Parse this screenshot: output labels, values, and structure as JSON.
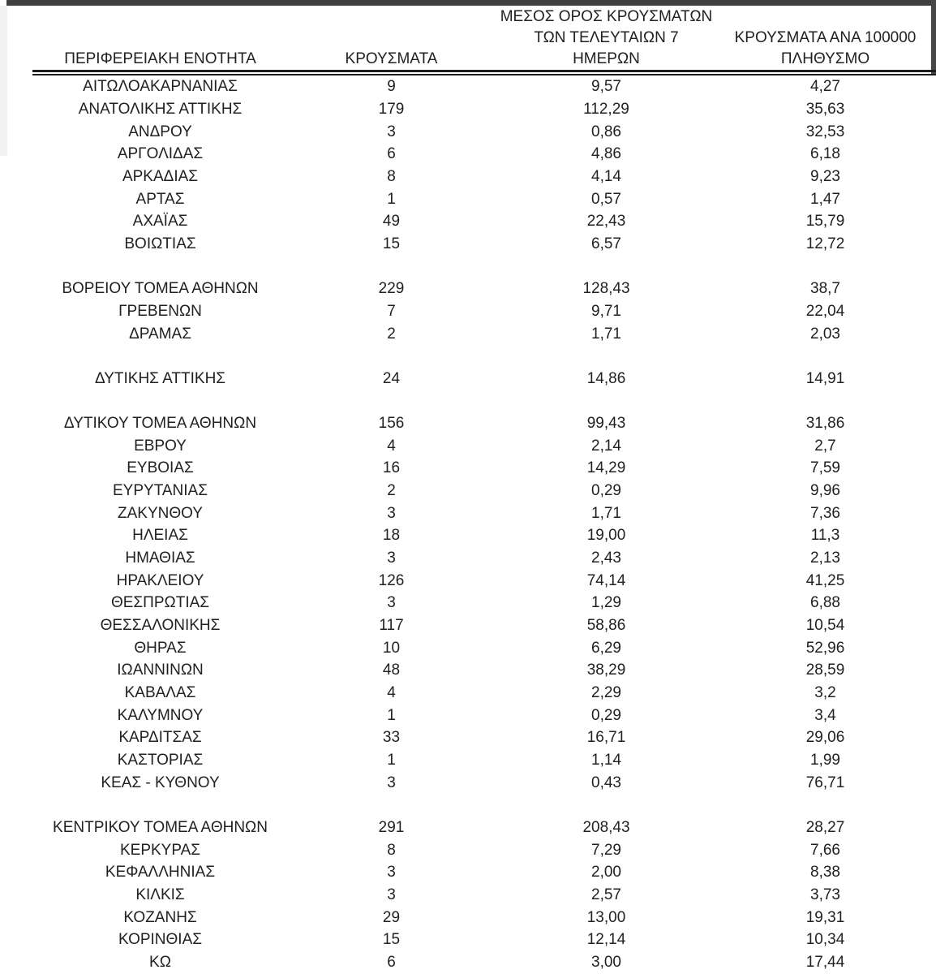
{
  "colors": {
    "text": "#212121",
    "rule": "#1c1c1c",
    "frame_top": "#3f3f3f",
    "frame_right": "#474747",
    "page_edge": "#f1f1f1"
  },
  "table": {
    "header": {
      "col1_lines": [
        "ΠΕΡΙΦΕΡΕΙΑΚΗ ΕΝΟΤΗΤΑ"
      ],
      "col2_lines": [
        "ΚΡΟΥΣΜΑΤΑ"
      ],
      "col3_lines": [
        "ΜΕΣΟΣ ΟΡΟΣ ΚΡΟΥΣΜΑΤΩΝ",
        "ΤΩΝ ΤΕΛΕΥΤΑΙΩΝ 7",
        "ΗΜΕΡΩΝ"
      ],
      "col4_lines": [
        "ΚΡΟΥΣΜΑΤΑ ΑΝΑ 100000",
        "ΠΛΗΘΥΣΜΟ"
      ]
    },
    "rows": [
      {
        "region": "ΑΙΤΩΛΟΑΚΑΡΝΑΝΙΑΣ",
        "cases": "9",
        "avg7": "9,57",
        "per100k": "4,27"
      },
      {
        "region": "ΑΝΑΤΟΛΙΚΗΣ ΑΤΤΙΚΗΣ",
        "cases": "179",
        "avg7": "112,29",
        "per100k": "35,63"
      },
      {
        "region": "ΑΝΔΡΟΥ",
        "cases": "3",
        "avg7": "0,86",
        "per100k": "32,53"
      },
      {
        "region": "ΑΡΓΟΛΙΔΑΣ",
        "cases": "6",
        "avg7": "4,86",
        "per100k": "6,18"
      },
      {
        "region": "ΑΡΚΑΔΙΑΣ",
        "cases": "8",
        "avg7": "4,14",
        "per100k": "9,23"
      },
      {
        "region": "ΑΡΤΑΣ",
        "cases": "1",
        "avg7": "0,57",
        "per100k": "1,47"
      },
      {
        "region": "ΑΧΑΪΑΣ",
        "cases": "49",
        "avg7": "22,43",
        "per100k": "15,79"
      },
      {
        "region": "ΒΟΙΩΤΙΑΣ",
        "cases": "15",
        "avg7": "6,57",
        "per100k": "12,72"
      },
      {
        "blank": true
      },
      {
        "region": "ΒΟΡΕΙΟΥ ΤΟΜΕΑ ΑΘΗΝΩΝ",
        "cases": "229",
        "avg7": "128,43",
        "per100k": "38,7"
      },
      {
        "region": "ΓΡΕΒΕΝΩΝ",
        "cases": "7",
        "avg7": "9,71",
        "per100k": "22,04"
      },
      {
        "region": "ΔΡΑΜΑΣ",
        "cases": "2",
        "avg7": "1,71",
        "per100k": "2,03"
      },
      {
        "blank": true
      },
      {
        "region": "ΔΥΤΙΚΗΣ ΑΤΤΙΚΗΣ",
        "cases": "24",
        "avg7": "14,86",
        "per100k": "14,91"
      },
      {
        "blank": true
      },
      {
        "region": "ΔΥΤΙΚΟΥ ΤΟΜΕΑ ΑΘΗΝΩΝ",
        "cases": "156",
        "avg7": "99,43",
        "per100k": "31,86"
      },
      {
        "region": "ΕΒΡΟΥ",
        "cases": "4",
        "avg7": "2,14",
        "per100k": "2,7"
      },
      {
        "region": "ΕΥΒΟΙΑΣ",
        "cases": "16",
        "avg7": "14,29",
        "per100k": "7,59"
      },
      {
        "region": "ΕΥΡΥΤΑΝΙΑΣ",
        "cases": "2",
        "avg7": "0,29",
        "per100k": "9,96"
      },
      {
        "region": "ΖΑΚΥΝΘΟΥ",
        "cases": "3",
        "avg7": "1,71",
        "per100k": "7,36"
      },
      {
        "region": "ΗΛΕΙΑΣ",
        "cases": "18",
        "avg7": "19,00",
        "per100k": "11,3"
      },
      {
        "region": "ΗΜΑΘΙΑΣ",
        "cases": "3",
        "avg7": "2,43",
        "per100k": "2,13"
      },
      {
        "region": "ΗΡΑΚΛΕΙΟΥ",
        "cases": "126",
        "avg7": "74,14",
        "per100k": "41,25"
      },
      {
        "region": "ΘΕΣΠΡΩΤΙΑΣ",
        "cases": "3",
        "avg7": "1,29",
        "per100k": "6,88"
      },
      {
        "region": "ΘΕΣΣΑΛΟΝΙΚΗΣ",
        "cases": "117",
        "avg7": "58,86",
        "per100k": "10,54"
      },
      {
        "region": "ΘΗΡΑΣ",
        "cases": "10",
        "avg7": "6,29",
        "per100k": "52,96"
      },
      {
        "region": "ΙΩΑΝΝΙΝΩΝ",
        "cases": "48",
        "avg7": "38,29",
        "per100k": "28,59"
      },
      {
        "region": "ΚΑΒΑΛΑΣ",
        "cases": "4",
        "avg7": "2,29",
        "per100k": "3,2"
      },
      {
        "region": "ΚΑΛΥΜΝΟΥ",
        "cases": "1",
        "avg7": "0,29",
        "per100k": "3,4"
      },
      {
        "region": "ΚΑΡΔΙΤΣΑΣ",
        "cases": "33",
        "avg7": "16,71",
        "per100k": "29,06"
      },
      {
        "region": "ΚΑΣΤΟΡΙΑΣ",
        "cases": "1",
        "avg7": "1,14",
        "per100k": "1,99"
      },
      {
        "region": "ΚΕΑΣ - ΚΥΘΝΟΥ",
        "cases": "3",
        "avg7": "0,43",
        "per100k": "76,71"
      },
      {
        "blank": true
      },
      {
        "region": "ΚΕΝΤΡΙΚΟΥ ΤΟΜΕΑ ΑΘΗΝΩΝ",
        "cases": "291",
        "avg7": "208,43",
        "per100k": "28,27"
      },
      {
        "region": "ΚΕΡΚΥΡΑΣ",
        "cases": "8",
        "avg7": "7,29",
        "per100k": "7,66"
      },
      {
        "region": "ΚΕΦΑΛΛΗΝΙΑΣ",
        "cases": "3",
        "avg7": "2,00",
        "per100k": "8,38"
      },
      {
        "region": "ΚΙΛΚΙΣ",
        "cases": "3",
        "avg7": "2,57",
        "per100k": "3,73"
      },
      {
        "region": "ΚΟΖΑΝΗΣ",
        "cases": "29",
        "avg7": "13,00",
        "per100k": "19,31"
      },
      {
        "region": "ΚΟΡΙΝΘΙΑΣ",
        "cases": "15",
        "avg7": "12,14",
        "per100k": "10,34"
      },
      {
        "region": "ΚΩ",
        "cases": "6",
        "avg7": "3,00",
        "per100k": "17,44"
      }
    ]
  }
}
